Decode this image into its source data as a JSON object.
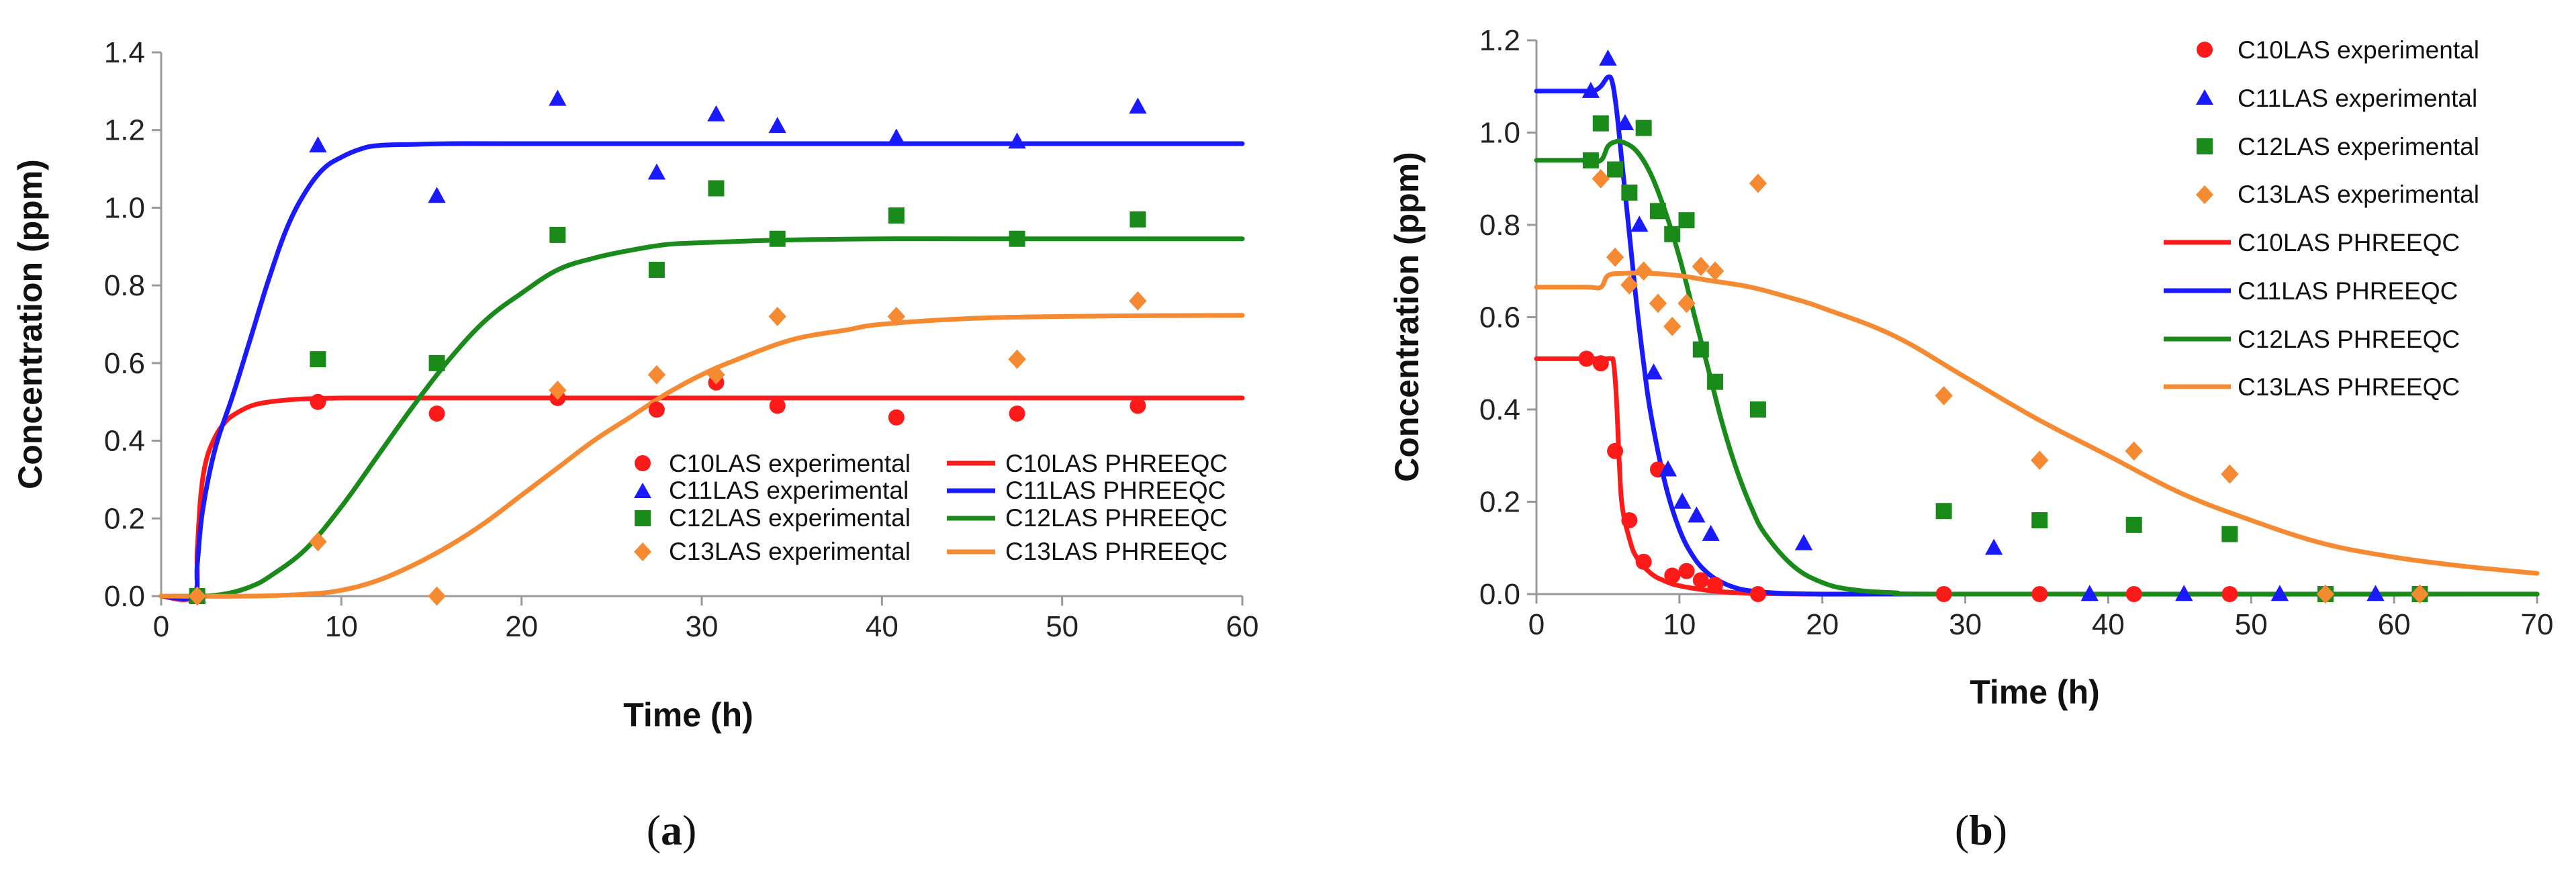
{
  "colors": {
    "C10": "#ff1a1a",
    "C11": "#1a1aff",
    "C12": "#1a8a1a",
    "C13": "#f58a33"
  },
  "chart_data": [
    {
      "type": "scatter",
      "panel_label_open": "(",
      "panel_label_letter": "a",
      "panel_label_close": ")",
      "xlabel": "Time (h)",
      "ylabel": "Concentration (ppm)",
      "xlim": [
        0,
        60
      ],
      "ylim": [
        0,
        1.4
      ],
      "xticks": [
        "0",
        "10",
        "20",
        "30",
        "40",
        "50",
        "60"
      ],
      "yticks": [
        "0.0",
        "0.2",
        "0.4",
        "0.6",
        "0.8",
        "1.0",
        "1.2",
        "1.4"
      ],
      "legend_position": "bottom-right",
      "experimental": [
        {
          "name": "C10LAS experimental",
          "color_key": "C10",
          "marker": "circle",
          "x": [
            2,
            8.7,
            15.3,
            22,
            27.5,
            30.8,
            34.2,
            40.8,
            47.5,
            54.2
          ],
          "y": [
            0,
            0.5,
            0.47,
            0.51,
            0.48,
            0.55,
            0.49,
            0.46,
            0.47,
            0.49
          ]
        },
        {
          "name": "C11LAS experimental",
          "color_key": "C11",
          "marker": "triangle",
          "x": [
            2,
            8.7,
            15.3,
            22,
            27.5,
            30.8,
            34.2,
            40.8,
            47.5,
            54.2
          ],
          "y": [
            0,
            1.16,
            1.03,
            1.28,
            1.09,
            1.24,
            1.21,
            1.18,
            1.17,
            1.26
          ]
        },
        {
          "name": "C12LAS experimental",
          "color_key": "C12",
          "marker": "square",
          "x": [
            2,
            8.7,
            15.3,
            22,
            27.5,
            30.8,
            34.2,
            40.8,
            47.5,
            54.2
          ],
          "y": [
            0,
            0.61,
            0.6,
            0.93,
            0.84,
            1.05,
            0.92,
            0.98,
            0.92,
            0.97
          ]
        },
        {
          "name": "C13LAS experimental",
          "color_key": "C13",
          "marker": "diamond",
          "x": [
            2,
            8.7,
            15.3,
            22,
            27.5,
            30.8,
            34.2,
            40.8,
            47.5,
            54.2
          ],
          "y": [
            0,
            0.14,
            0.0,
            0.53,
            0.57,
            0.57,
            0.72,
            0.72,
            0.61,
            0.76
          ]
        }
      ],
      "model": [
        {
          "name": "C10LAS PHREEQC",
          "color_key": "C10",
          "x": [
            0,
            1.8,
            2.0,
            2.2,
            2.5,
            3,
            3.5,
            4,
            5,
            6,
            7,
            8,
            10,
            12,
            20,
            40,
            60
          ],
          "y": [
            0,
            0,
            0.12,
            0.26,
            0.35,
            0.41,
            0.445,
            0.466,
            0.49,
            0.5,
            0.505,
            0.508,
            0.51,
            0.51,
            0.51,
            0.51,
            0.51
          ]
        },
        {
          "name": "C11LAS PHREEQC",
          "color_key": "C11",
          "x": [
            0,
            1.8,
            2.0,
            2.3,
            3,
            4,
            5,
            6,
            7,
            8,
            9,
            10,
            11,
            12,
            14,
            16,
            20,
            30,
            60
          ],
          "y": [
            0,
            0,
            0.08,
            0.22,
            0.38,
            0.52,
            0.67,
            0.82,
            0.95,
            1.04,
            1.1,
            1.13,
            1.15,
            1.16,
            1.163,
            1.165,
            1.165,
            1.165,
            1.165
          ]
        },
        {
          "name": "C12LAS PHREEQC",
          "color_key": "C12",
          "x": [
            0,
            2,
            3,
            4,
            5,
            6,
            8,
            10,
            12,
            14,
            16,
            18,
            20,
            22,
            24,
            26,
            28,
            30,
            33,
            36,
            40,
            45,
            50,
            60
          ],
          "y": [
            0,
            0,
            0.002,
            0.01,
            0.025,
            0.05,
            0.12,
            0.23,
            0.36,
            0.49,
            0.61,
            0.71,
            0.78,
            0.84,
            0.87,
            0.89,
            0.905,
            0.91,
            0.915,
            0.918,
            0.92,
            0.92,
            0.92,
            0.92
          ]
        },
        {
          "name": "C13LAS PHREEQC",
          "color_key": "C13",
          "x": [
            0,
            5,
            8,
            10,
            12,
            14,
            16,
            18,
            20,
            22,
            24,
            26,
            28,
            30,
            32,
            35,
            38,
            40,
            45,
            50,
            55,
            60
          ],
          "y": [
            0,
            0,
            0.005,
            0.015,
            0.04,
            0.08,
            0.13,
            0.19,
            0.26,
            0.33,
            0.4,
            0.46,
            0.52,
            0.57,
            0.61,
            0.66,
            0.685,
            0.7,
            0.715,
            0.72,
            0.722,
            0.723
          ]
        }
      ]
    },
    {
      "type": "scatter",
      "panel_label_open": "(",
      "panel_label_letter": "b",
      "panel_label_close": ")",
      "xlabel": "Time (h)",
      "ylabel": "Concentration (ppm)",
      "xlim": [
        0,
        70
      ],
      "ylim": [
        0,
        1.2
      ],
      "xticks": [
        "0",
        "10",
        "20",
        "30",
        "40",
        "50",
        "60",
        "70"
      ],
      "yticks": [
        "0.0",
        "0.2",
        "0.4",
        "0.6",
        "0.8",
        "1.0",
        "1.2"
      ],
      "legend_position": "top-right",
      "experimental": [
        {
          "name": "C10LAS experimental",
          "color_key": "C10",
          "marker": "circle",
          "x": [
            3.5,
            4.5,
            5.5,
            6.5,
            7.5,
            8.5,
            9.5,
            10.5,
            11.5,
            12.5,
            15.5,
            28.5,
            35.2,
            41.8,
            48.5
          ],
          "y": [
            0.51,
            0.5,
            0.31,
            0.16,
            0.07,
            0.27,
            0.04,
            0.05,
            0.03,
            0.02,
            0.0,
            0.0,
            0.0,
            0.0,
            0.0
          ]
        },
        {
          "name": "C11LAS experimental",
          "color_key": "C11",
          "marker": "triangle",
          "x": [
            3.8,
            5.0,
            6.2,
            7.2,
            8.2,
            9.2,
            10.2,
            11.2,
            12.2,
            18.7,
            32.0,
            38.7,
            45.3,
            52.0,
            58.7
          ],
          "y": [
            1.09,
            1.16,
            1.02,
            0.8,
            0.48,
            0.27,
            0.2,
            0.17,
            0.13,
            0.11,
            0.1,
            0.0,
            0.0,
            0.0,
            0.0
          ]
        },
        {
          "name": "C12LAS experimental",
          "color_key": "C12",
          "marker": "square",
          "x": [
            3.8,
            4.5,
            5.5,
            6.5,
            7.5,
            8.5,
            9.5,
            10.5,
            11.5,
            12.5,
            15.5,
            28.5,
            35.2,
            41.8,
            48.5,
            55.2,
            61.8
          ],
          "y": [
            0.94,
            1.02,
            0.92,
            0.87,
            1.01,
            0.83,
            0.78,
            0.81,
            0.53,
            0.46,
            0.4,
            0.18,
            0.16,
            0.15,
            0.13,
            0.0,
            0.0
          ]
        },
        {
          "name": "C13LAS experimental",
          "color_key": "C13",
          "marker": "diamond",
          "x": [
            4.5,
            5.5,
            6.5,
            7.5,
            8.5,
            9.5,
            10.5,
            11.5,
            12.5,
            15.5,
            28.5,
            35.2,
            41.8,
            48.5,
            55.2,
            61.8
          ],
          "y": [
            0.9,
            0.73,
            0.67,
            0.7,
            0.63,
            0.58,
            0.63,
            0.71,
            0.7,
            0.89,
            0.43,
            0.29,
            0.31,
            0.26,
            0.0,
            0.0
          ]
        }
      ],
      "model": [
        {
          "name": "C10LAS PHREEQC",
          "color_key": "C10",
          "x": [
            0,
            4.5,
            5.2,
            5.4,
            5.6,
            5.8,
            6.0,
            6.5,
            7.0,
            8.0,
            9.0,
            10.0,
            12.0,
            14.0,
            16.0,
            20.0,
            30.0,
            70.0
          ],
          "y": [
            0.51,
            0.51,
            0.51,
            0.5,
            0.42,
            0.28,
            0.19,
            0.12,
            0.08,
            0.045,
            0.028,
            0.018,
            0.008,
            0.003,
            0.001,
            0,
            0,
            0
          ]
        },
        {
          "name": "C11LAS PHREEQC",
          "color_key": "C11",
          "x": [
            0,
            3.5,
            4.0,
            4.5,
            5.0,
            5.3,
            5.6,
            6.0,
            6.5,
            7.0,
            7.5,
            8.0,
            9.0,
            10.0,
            11.0,
            12.0,
            13.0,
            14.0,
            15.0,
            17.0,
            20.0,
            25.0,
            70.0
          ],
          "y": [
            1.09,
            1.09,
            1.09,
            1.1,
            1.12,
            1.11,
            1.05,
            0.93,
            0.78,
            0.63,
            0.5,
            0.39,
            0.24,
            0.14,
            0.08,
            0.045,
            0.025,
            0.013,
            0.007,
            0.002,
            0,
            0,
            0
          ]
        },
        {
          "name": "C12LAS PHREEQC",
          "color_key": "C12",
          "x": [
            0,
            3.5,
            4.5,
            5.0,
            5.5,
            6.0,
            7.0,
            8.0,
            9.0,
            10.0,
            11.0,
            12.0,
            13.0,
            14.0,
            15.0,
            16.0,
            18.0,
            20.0,
            22.0,
            25.0,
            30.0,
            70.0
          ],
          "y": [
            0.94,
            0.94,
            0.94,
            0.97,
            0.98,
            0.98,
            0.96,
            0.91,
            0.83,
            0.73,
            0.61,
            0.49,
            0.37,
            0.27,
            0.19,
            0.13,
            0.06,
            0.025,
            0.01,
            0.003,
            0,
            0
          ]
        },
        {
          "name": "C13LAS PHREEQC",
          "color_key": "C13",
          "x": [
            0,
            3.5,
            4.5,
            5.0,
            6.0,
            8.0,
            10.0,
            12.0,
            15.0,
            18.0,
            20.0,
            25.0,
            30.0,
            35.0,
            40.0,
            45.0,
            50.0,
            55.0,
            60.0,
            65.0,
            70.0
          ],
          "y": [
            0.665,
            0.665,
            0.665,
            0.69,
            0.695,
            0.695,
            0.69,
            0.68,
            0.665,
            0.64,
            0.62,
            0.56,
            0.47,
            0.38,
            0.3,
            0.22,
            0.16,
            0.11,
            0.08,
            0.06,
            0.045
          ]
        }
      ]
    }
  ]
}
